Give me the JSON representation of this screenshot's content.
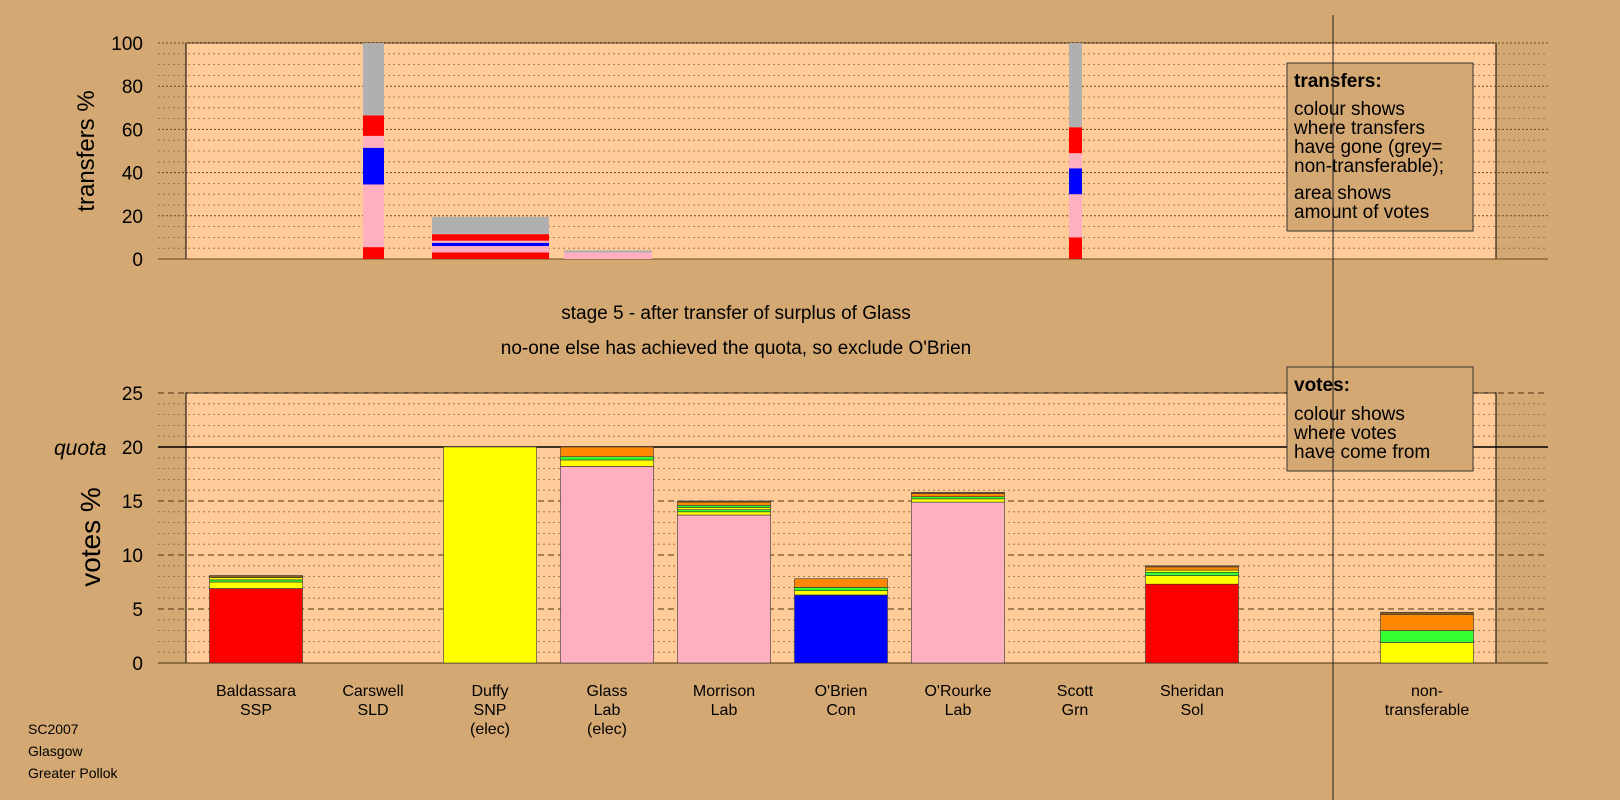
{
  "colors": {
    "background": "#d4a873",
    "plot_background": "#ffcc99",
    "SSP": "#ff0000",
    "SNP": "#ffff00",
    "Lab": "#ffb0c0",
    "Con": "#0000ff",
    "Grn": "#33ff33",
    "LibDem": "#ff8800",
    "Sol": "#ff0000",
    "other": "#8a6020",
    "nontransferable": "#b0b0b0"
  },
  "caption": {
    "line1": "stage 5 - after transfer of surplus of Glass",
    "line2": "no-one else has achieved the quota, so exclude O'Brien"
  },
  "footer": {
    "line1": "SC2007",
    "line2": "Glasgow",
    "line3": "Greater Pollok"
  },
  "chart_data": [
    {
      "type": "bar",
      "name": "transfers",
      "ylabel": "transfers %",
      "ylim": [
        0,
        100
      ],
      "yticks": [
        0,
        20,
        40,
        60,
        80,
        100
      ],
      "legend": {
        "placement": "top-right",
        "title": "transfers:",
        "para1": [
          "colour shows",
          "where transfers",
          "have gone (grey=",
          "non-transferable);"
        ],
        "para2": [
          "area shows",
          "amount of votes"
        ]
      },
      "bars": [
        {
          "source": "Carswell",
          "width_share": 0.09,
          "segments": [
            {
              "color": "SSP",
              "value": 5.5
            },
            {
              "color": "Lab",
              "value": 29
            },
            {
              "color": "Con",
              "value": 17
            },
            {
              "color": "Lab",
              "value": 5.5
            },
            {
              "color": "SSP",
              "value": 9.5
            },
            {
              "color": "nontransferable",
              "value": 33.5
            }
          ]
        },
        {
          "source": "Duffy surplus",
          "width_share": 0.5,
          "segments": [
            {
              "color": "SSP",
              "value": 3
            },
            {
              "color": "Lab",
              "value": 3
            },
            {
              "color": "Con",
              "value": 1.5
            },
            {
              "color": "Lab",
              "value": 1
            },
            {
              "color": "SSP",
              "value": 3
            },
            {
              "color": "nontransferable",
              "value": 8
            }
          ]
        },
        {
          "source": "Glass surplus",
          "width_share": 0.4,
          "segments": [
            {
              "color": "Lab",
              "value": 3
            },
            {
              "color": "nontransferable",
              "value": 1
            }
          ]
        },
        {
          "source": "Scott",
          "width_share": 0.06,
          "segments": [
            {
              "color": "SSP",
              "value": 10
            },
            {
              "color": "Lab",
              "value": 20
            },
            {
              "color": "Con",
              "value": 12
            },
            {
              "color": "Lab",
              "value": 7
            },
            {
              "color": "SSP",
              "value": 12
            },
            {
              "color": "nontransferable",
              "value": 39
            }
          ]
        }
      ]
    },
    {
      "type": "bar",
      "name": "votes",
      "ylabel": "votes %",
      "ylim": [
        0,
        25
      ],
      "yticks": [
        0,
        5,
        10,
        15,
        20,
        25
      ],
      "quota": 20,
      "quota_label": "quota",
      "legend": {
        "placement": "top-right",
        "title": "votes:",
        "para1": [
          "colour shows",
          "where votes",
          "have come from"
        ]
      },
      "categories": [
        {
          "name": "Baldassara",
          "party": "SSP",
          "note": "",
          "segments": [
            {
              "color": "SSP",
              "value": 6.9
            },
            {
              "color": "SNP",
              "value": 0.6
            },
            {
              "color": "Grn",
              "value": 0.2
            },
            {
              "color": "SNP",
              "value": 0.2
            },
            {
              "color": "other",
              "value": 0.2
            }
          ]
        },
        {
          "name": "Carswell",
          "party": "SLD",
          "note": "",
          "segments": []
        },
        {
          "name": "Duffy",
          "party": "SNP",
          "note": "(elec)",
          "segments": [
            {
              "color": "SNP",
              "value": 20
            }
          ]
        },
        {
          "name": "Glass",
          "party": "Lab",
          "note": "(elec)",
          "segments": [
            {
              "color": "Lab",
              "value": 18.2
            },
            {
              "color": "SNP",
              "value": 0.6
            },
            {
              "color": "Grn",
              "value": 0.3
            },
            {
              "color": "LibDem",
              "value": 0.9
            }
          ]
        },
        {
          "name": "Morrison",
          "party": "Lab",
          "note": "",
          "segments": [
            {
              "color": "Lab",
              "value": 13.7
            },
            {
              "color": "SNP",
              "value": 0.3
            },
            {
              "color": "Grn",
              "value": 0.2
            },
            {
              "color": "SNP",
              "value": 0.2
            },
            {
              "color": "Grn",
              "value": 0.2
            },
            {
              "color": "LibDem",
              "value": 0.3
            },
            {
              "color": "other",
              "value": 0.1
            }
          ]
        },
        {
          "name": "O'Brien",
          "party": "Con",
          "note": "",
          "segments": [
            {
              "color": "Con",
              "value": 6.3
            },
            {
              "color": "SNP",
              "value": 0.4
            },
            {
              "color": "Grn",
              "value": 0.3
            },
            {
              "color": "LibDem",
              "value": 0.8
            }
          ]
        },
        {
          "name": "O'Rourke",
          "party": "Lab",
          "note": "",
          "segments": [
            {
              "color": "Lab",
              "value": 14.9
            },
            {
              "color": "SNP",
              "value": 0.3
            },
            {
              "color": "Grn",
              "value": 0.2
            },
            {
              "color": "LibDem",
              "value": 0.3
            },
            {
              "color": "other",
              "value": 0.1
            }
          ]
        },
        {
          "name": "Scott",
          "party": "Grn",
          "note": "",
          "segments": []
        },
        {
          "name": "Sheridan",
          "party": "Sol",
          "note": "",
          "segments": [
            {
              "color": "Sol",
              "value": 7.3
            },
            {
              "color": "SNP",
              "value": 0.8
            },
            {
              "color": "Grn",
              "value": 0.3
            },
            {
              "color": "SNP",
              "value": 0.2
            },
            {
              "color": "LibDem",
              "value": 0.3
            },
            {
              "color": "other",
              "value": 0.1
            }
          ]
        }
      ],
      "nontransferable": {
        "label1": "non-",
        "label2": "transferable",
        "segments": [
          {
            "color": "SNP",
            "value": 1.9
          },
          {
            "color": "Grn",
            "value": 1.1
          },
          {
            "color": "LibDem",
            "value": 1.5
          },
          {
            "color": "other",
            "value": 0.2
          }
        ]
      }
    }
  ]
}
